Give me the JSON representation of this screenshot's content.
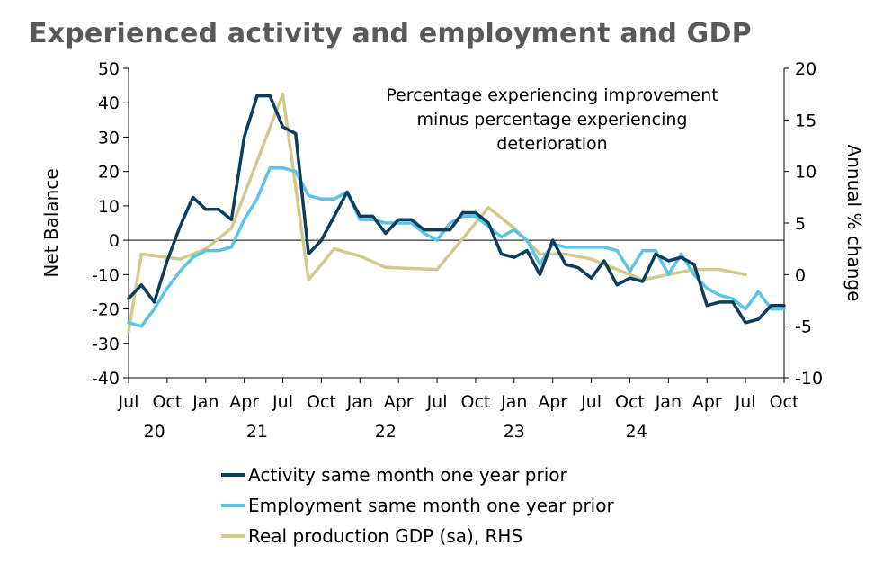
{
  "chart_data": {
    "type": "line",
    "title": "Experienced activity and employment and GDP",
    "annotation": [
      "Percentage experiencing improvement",
      "minus percentage experiencing",
      "deterioration"
    ],
    "ylabel": "Net Balance",
    "y2label": "Annual % change",
    "ylim": [
      -40,
      50
    ],
    "y2lim": [
      -10,
      20
    ],
    "yticks": [
      -40,
      -30,
      -20,
      -10,
      0,
      10,
      20,
      30,
      40,
      50
    ],
    "y2ticks": [
      -10,
      -5,
      0,
      5,
      10,
      15,
      20
    ],
    "xlim": [
      0,
      51
    ],
    "x_month_labels": [
      {
        "x": 0,
        "label": "Jul"
      },
      {
        "x": 3,
        "label": "Oct"
      },
      {
        "x": 6,
        "label": "Jan"
      },
      {
        "x": 9,
        "label": "Apr"
      },
      {
        "x": 12,
        "label": "Jul"
      },
      {
        "x": 15,
        "label": "Oct"
      },
      {
        "x": 18,
        "label": "Jan"
      },
      {
        "x": 21,
        "label": "Apr"
      },
      {
        "x": 24,
        "label": "Jul"
      },
      {
        "x": 27,
        "label": "Oct"
      },
      {
        "x": 30,
        "label": "Jan"
      },
      {
        "x": 33,
        "label": "Apr"
      },
      {
        "x": 36,
        "label": "Jul"
      },
      {
        "x": 39,
        "label": "Oct"
      },
      {
        "x": 42,
        "label": "Jan"
      },
      {
        "x": 45,
        "label": "Apr"
      },
      {
        "x": 48,
        "label": "Jul"
      },
      {
        "x": 51,
        "label": "Oct"
      }
    ],
    "x_year_labels": [
      {
        "x": 2,
        "label": "20"
      },
      {
        "x": 10,
        "label": "21"
      },
      {
        "x": 20,
        "label": "22"
      },
      {
        "x": 30,
        "label": "23"
      },
      {
        "x": 39.5,
        "label": "24"
      }
    ],
    "series": [
      {
        "name": "Activity same month one year prior",
        "axis": "left",
        "color": "#0b3d5c",
        "x": [
          0,
          1,
          2,
          3,
          4,
          5,
          6,
          7,
          8,
          9,
          10,
          11,
          12,
          13,
          14,
          15,
          16,
          17,
          18,
          19,
          20,
          21,
          22,
          23,
          24,
          25,
          26,
          27,
          28,
          29,
          30,
          31,
          32,
          33,
          34,
          35,
          36,
          37,
          38,
          39,
          40,
          41,
          42,
          43,
          44,
          45,
          46,
          47,
          48,
          49,
          50,
          51
        ],
        "values": [
          -17,
          -13,
          -18,
          -6,
          4,
          12.5,
          9,
          9,
          6,
          30,
          42,
          42,
          33,
          31,
          -4,
          0,
          7,
          14,
          7,
          7,
          2,
          6,
          6,
          3,
          3,
          3,
          8,
          8,
          5,
          -4,
          -5,
          -3,
          -10,
          0,
          -7,
          -8,
          -11,
          -6,
          -13,
          -11,
          -12,
          -4,
          -6,
          -5,
          -7,
          -19,
          -18,
          -18,
          -24,
          -23,
          -19,
          -19
        ]
      },
      {
        "name": "Employment same month one year prior",
        "axis": "left",
        "color": "#5bc4e6",
        "x": [
          0,
          1,
          2,
          3,
          4,
          5,
          6,
          7,
          8,
          9,
          10,
          11,
          12,
          13,
          14,
          15,
          16,
          17,
          18,
          19,
          20,
          21,
          22,
          23,
          24,
          25,
          26,
          27,
          28,
          29,
          30,
          31,
          32,
          33,
          34,
          35,
          36,
          37,
          38,
          39,
          40,
          41,
          42,
          43,
          44,
          45,
          46,
          47,
          48,
          49,
          50,
          51
        ],
        "values": [
          -24,
          -25,
          -20,
          -14,
          -9,
          -5,
          -3,
          -3,
          -2,
          6,
          12,
          21,
          21,
          20,
          13,
          12,
          12,
          14,
          6,
          6,
          5,
          5,
          5,
          2,
          0,
          5,
          7,
          7,
          4,
          1,
          3,
          0,
          -7,
          -1,
          -2,
          -2,
          -2,
          -2,
          -3,
          -9,
          -3,
          -3,
          -10,
          -4,
          -10,
          -14,
          -16,
          -17,
          -20,
          -15,
          -20,
          -20
        ]
      },
      {
        "name": "Real production GDP (sa), RHS",
        "axis": "right",
        "color": "#d2c98d",
        "x": [
          0,
          1,
          4,
          6,
          8,
          10,
          12,
          14,
          16,
          18,
          20,
          22,
          24,
          26,
          28,
          30,
          32,
          34,
          36,
          38,
          40,
          42,
          44,
          46,
          48
        ],
        "values": [
          -5.5,
          2,
          1.5,
          2.5,
          4.5,
          11,
          17.5,
          -0.5,
          2.5,
          1.8,
          0.7,
          0.6,
          0.5,
          3.5,
          6.5,
          4.5,
          2,
          2,
          1.5,
          0.5,
          -0.5,
          0,
          0.5,
          0.5,
          0
        ]
      }
    ]
  }
}
